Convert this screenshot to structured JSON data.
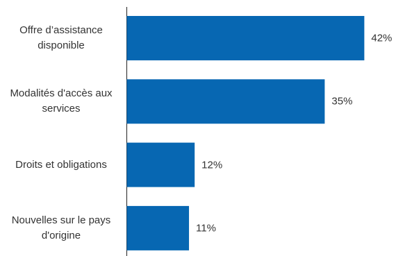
{
  "chart_data": {
    "type": "bar",
    "orientation": "horizontal",
    "categories": [
      "Offre d’assistance disponible",
      "Modalités d'accès aux services",
      "Droits et obligations",
      "Nouvelles sur le pays d'origine"
    ],
    "values": [
      42,
      35,
      12,
      11
    ],
    "value_labels": [
      "42%",
      "35%",
      "12%",
      "11%"
    ],
    "color": "#0767b2"
  }
}
